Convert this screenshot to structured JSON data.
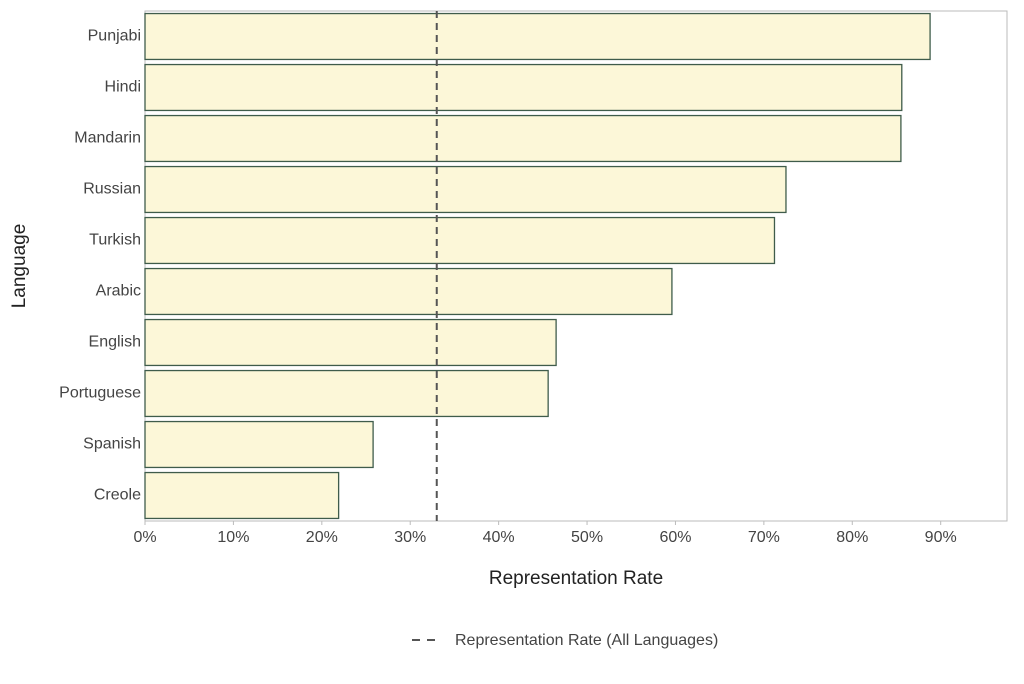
{
  "chart_data": {
    "type": "barh",
    "x_label": "Representation Rate",
    "y_label": "Language",
    "categories": [
      "Punjabi",
      "Hindi",
      "Mandarin",
      "Russian",
      "Turkish",
      "Arabic",
      "English",
      "Portuguese",
      "Spanish",
      "Creole"
    ],
    "values": [
      88.8,
      85.6,
      85.5,
      72.5,
      71.2,
      59.6,
      46.5,
      45.6,
      25.8,
      21.9
    ],
    "color": "#fcf7d8",
    "edge_color": "#3f5c4b",
    "xlim": [
      0,
      97.5
    ],
    "xticks": [
      {
        "value": 0,
        "label": "0%"
      },
      {
        "value": 10,
        "label": "10%"
      },
      {
        "value": 20,
        "label": "20%"
      },
      {
        "value": 30,
        "label": "30%"
      },
      {
        "value": 40,
        "label": "40%"
      },
      {
        "value": 50,
        "label": "50%"
      },
      {
        "value": 60,
        "label": "60%"
      },
      {
        "value": 70,
        "label": "70%"
      },
      {
        "value": 80,
        "label": "80%"
      },
      {
        "value": 90,
        "label": "90%"
      }
    ],
    "reference_line": {
      "value": 33,
      "label": "Representation Rate (All Languages)",
      "color": "#555555"
    },
    "legend": "bottom"
  }
}
